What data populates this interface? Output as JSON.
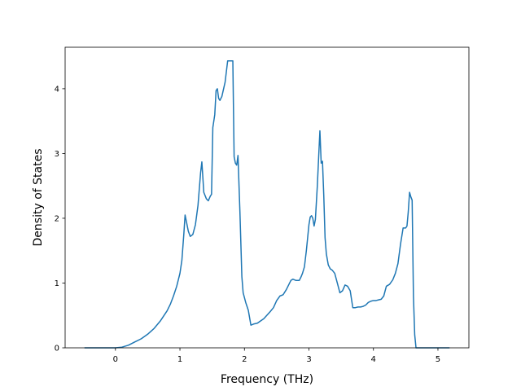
{
  "chart_data": {
    "type": "line",
    "xlabel": "Frequency (THz)",
    "ylabel": "Density of States",
    "xlim": [
      -0.78,
      5.48
    ],
    "ylim": [
      0,
      4.64
    ],
    "grid": false,
    "x_ticks": [
      0,
      1,
      2,
      3,
      4,
      5
    ],
    "y_ticks": [
      0,
      1,
      2,
      3,
      4
    ],
    "series": [
      {
        "color": "#1f77b4",
        "x": [
          -0.48,
          0.0,
          0.1,
          0.2,
          0.3,
          0.4,
          0.5,
          0.6,
          0.7,
          0.8,
          0.85,
          0.9,
          0.95,
          1.0,
          1.03,
          1.06,
          1.08,
          1.1,
          1.13,
          1.16,
          1.2,
          1.24,
          1.28,
          1.32,
          1.34,
          1.37,
          1.41,
          1.44,
          1.47,
          1.49,
          1.51,
          1.54,
          1.56,
          1.58,
          1.6,
          1.62,
          1.65,
          1.7,
          1.74,
          1.78,
          1.82,
          1.84,
          1.86,
          1.88,
          1.9,
          1.93,
          1.96,
          1.98,
          2.02,
          2.06,
          2.1,
          2.15,
          2.2,
          2.3,
          2.4,
          2.45,
          2.5,
          2.55,
          2.6,
          2.65,
          2.7,
          2.72,
          2.75,
          2.8,
          2.85,
          2.88,
          2.9,
          2.93,
          2.96,
          3.0,
          3.02,
          3.04,
          3.06,
          3.08,
          3.1,
          3.13,
          3.15,
          3.17,
          3.19,
          3.21,
          3.23,
          3.25,
          3.27,
          3.3,
          3.33,
          3.36,
          3.4,
          3.44,
          3.48,
          3.52,
          3.56,
          3.6,
          3.64,
          3.68,
          3.72,
          3.76,
          3.8,
          3.84,
          3.88,
          3.92,
          3.96,
          4.0,
          4.04,
          4.08,
          4.12,
          4.16,
          4.2,
          4.25,
          4.3,
          4.34,
          4.38,
          4.42,
          4.46,
          4.5,
          4.52,
          4.54,
          4.56,
          4.58,
          4.6,
          4.62,
          4.64,
          4.66,
          4.68,
          4.7,
          4.72,
          4.74,
          5.18
        ],
        "y": [
          0.0,
          0.0,
          0.01,
          0.04,
          0.09,
          0.14,
          0.21,
          0.3,
          0.42,
          0.57,
          0.67,
          0.8,
          0.95,
          1.15,
          1.35,
          1.75,
          2.05,
          1.95,
          1.8,
          1.72,
          1.75,
          1.9,
          2.2,
          2.7,
          2.87,
          2.4,
          2.3,
          2.27,
          2.34,
          2.37,
          3.4,
          3.6,
          3.97,
          4.0,
          3.85,
          3.82,
          3.88,
          4.1,
          4.43,
          4.43,
          4.43,
          2.95,
          2.85,
          2.82,
          2.97,
          2.1,
          1.1,
          0.85,
          0.7,
          0.58,
          0.35,
          0.37,
          0.38,
          0.45,
          0.56,
          0.62,
          0.73,
          0.8,
          0.82,
          0.9,
          1.0,
          1.04,
          1.06,
          1.04,
          1.04,
          1.1,
          1.15,
          1.25,
          1.5,
          1.9,
          2.02,
          2.04,
          2.0,
          1.88,
          1.98,
          2.5,
          2.93,
          3.35,
          2.85,
          2.88,
          2.35,
          1.7,
          1.45,
          1.28,
          1.22,
          1.2,
          1.15,
          1.0,
          0.85,
          0.88,
          0.97,
          0.95,
          0.88,
          0.62,
          0.62,
          0.63,
          0.63,
          0.64,
          0.66,
          0.7,
          0.72,
          0.73,
          0.73,
          0.74,
          0.75,
          0.8,
          0.95,
          0.98,
          1.05,
          1.15,
          1.3,
          1.6,
          1.85,
          1.85,
          1.88,
          2.1,
          2.4,
          2.33,
          2.28,
          0.8,
          0.2,
          0.0,
          0.0,
          0.0,
          0.0,
          0.0,
          0.0
        ]
      }
    ]
  }
}
